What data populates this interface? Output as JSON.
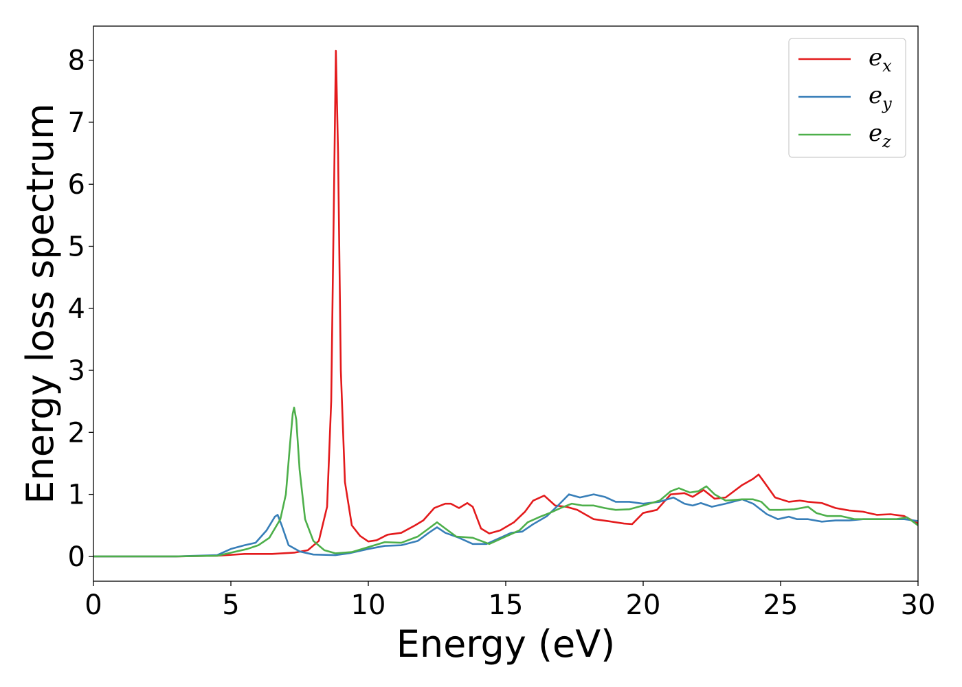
{
  "chart_data": {
    "type": "line",
    "xlabel": "Energy (eV)",
    "ylabel": "Energy loss spectrum",
    "xlim": [
      0,
      30
    ],
    "ylim": [
      -0.4,
      8.55
    ],
    "xticks": [
      "0",
      "5",
      "10",
      "15",
      "20",
      "25",
      "30"
    ],
    "yticks": [
      "0",
      "1",
      "2",
      "3",
      "4",
      "5",
      "6",
      "7",
      "8"
    ],
    "grid": false,
    "legend": {
      "placement": "top-right"
    },
    "series": [
      {
        "name": "e_x",
        "label_base": "e",
        "label_sub": "x",
        "color": "#e31a1c",
        "points": [
          [
            0,
            0
          ],
          [
            3,
            0
          ],
          [
            4.5,
            0.01
          ],
          [
            5.5,
            0.04
          ],
          [
            6.5,
            0.04
          ],
          [
            7.3,
            0.06
          ],
          [
            7.8,
            0.1
          ],
          [
            8.2,
            0.25
          ],
          [
            8.5,
            0.8
          ],
          [
            8.65,
            2.5
          ],
          [
            8.75,
            5.8
          ],
          [
            8.82,
            8.15
          ],
          [
            8.9,
            6.5
          ],
          [
            9.0,
            3.0
          ],
          [
            9.15,
            1.2
          ],
          [
            9.4,
            0.5
          ],
          [
            9.7,
            0.33
          ],
          [
            10.0,
            0.24
          ],
          [
            10.3,
            0.26
          ],
          [
            10.7,
            0.35
          ],
          [
            11.2,
            0.38
          ],
          [
            11.7,
            0.5
          ],
          [
            12.0,
            0.58
          ],
          [
            12.4,
            0.78
          ],
          [
            12.8,
            0.85
          ],
          [
            13.0,
            0.85
          ],
          [
            13.3,
            0.78
          ],
          [
            13.6,
            0.86
          ],
          [
            13.8,
            0.8
          ],
          [
            14.1,
            0.45
          ],
          [
            14.4,
            0.37
          ],
          [
            14.8,
            0.42
          ],
          [
            15.3,
            0.55
          ],
          [
            15.7,
            0.72
          ],
          [
            16.0,
            0.9
          ],
          [
            16.4,
            0.98
          ],
          [
            16.8,
            0.82
          ],
          [
            17.2,
            0.8
          ],
          [
            17.6,
            0.75
          ],
          [
            18.2,
            0.6
          ],
          [
            18.7,
            0.57
          ],
          [
            19.3,
            0.53
          ],
          [
            19.6,
            0.52
          ],
          [
            20.0,
            0.7
          ],
          [
            20.5,
            0.75
          ],
          [
            21.0,
            1.0
          ],
          [
            21.5,
            1.02
          ],
          [
            21.8,
            0.96
          ],
          [
            22.2,
            1.07
          ],
          [
            22.6,
            0.93
          ],
          [
            23.0,
            0.95
          ],
          [
            23.6,
            1.15
          ],
          [
            24.0,
            1.25
          ],
          [
            24.2,
            1.32
          ],
          [
            24.4,
            1.2
          ],
          [
            24.8,
            0.95
          ],
          [
            25.3,
            0.88
          ],
          [
            25.7,
            0.9
          ],
          [
            26.0,
            0.88
          ],
          [
            26.5,
            0.86
          ],
          [
            27.0,
            0.78
          ],
          [
            27.5,
            0.74
          ],
          [
            28.0,
            0.72
          ],
          [
            28.5,
            0.67
          ],
          [
            29.0,
            0.68
          ],
          [
            29.5,
            0.65
          ],
          [
            30.0,
            0.53
          ]
        ]
      },
      {
        "name": "e_y",
        "label_base": "e",
        "label_sub": "y",
        "color": "#377eb8",
        "points": [
          [
            0,
            0
          ],
          [
            3,
            0
          ],
          [
            4.5,
            0.02
          ],
          [
            5.0,
            0.12
          ],
          [
            5.5,
            0.18
          ],
          [
            5.9,
            0.22
          ],
          [
            6.3,
            0.42
          ],
          [
            6.6,
            0.64
          ],
          [
            6.7,
            0.67
          ],
          [
            6.85,
            0.5
          ],
          [
            7.1,
            0.18
          ],
          [
            7.5,
            0.08
          ],
          [
            8.0,
            0.03
          ],
          [
            8.8,
            0.02
          ],
          [
            9.3,
            0.05
          ],
          [
            10.0,
            0.12
          ],
          [
            10.6,
            0.17
          ],
          [
            11.2,
            0.18
          ],
          [
            11.8,
            0.25
          ],
          [
            12.2,
            0.38
          ],
          [
            12.5,
            0.47
          ],
          [
            12.8,
            0.38
          ],
          [
            13.3,
            0.3
          ],
          [
            13.8,
            0.2
          ],
          [
            14.3,
            0.2
          ],
          [
            14.8,
            0.3
          ],
          [
            15.2,
            0.38
          ],
          [
            15.6,
            0.4
          ],
          [
            16.0,
            0.52
          ],
          [
            16.5,
            0.65
          ],
          [
            16.9,
            0.82
          ],
          [
            17.3,
            1.0
          ],
          [
            17.7,
            0.95
          ],
          [
            18.2,
            1.0
          ],
          [
            18.6,
            0.96
          ],
          [
            19.0,
            0.88
          ],
          [
            19.5,
            0.88
          ],
          [
            20.0,
            0.85
          ],
          [
            20.6,
            0.88
          ],
          [
            21.1,
            0.95
          ],
          [
            21.5,
            0.85
          ],
          [
            21.8,
            0.82
          ],
          [
            22.1,
            0.86
          ],
          [
            22.5,
            0.8
          ],
          [
            23.0,
            0.85
          ],
          [
            23.6,
            0.92
          ],
          [
            24.0,
            0.85
          ],
          [
            24.5,
            0.68
          ],
          [
            24.9,
            0.6
          ],
          [
            25.3,
            0.64
          ],
          [
            25.6,
            0.6
          ],
          [
            26.0,
            0.6
          ],
          [
            26.5,
            0.56
          ],
          [
            27.0,
            0.58
          ],
          [
            27.5,
            0.58
          ],
          [
            28.0,
            0.6
          ],
          [
            28.5,
            0.6
          ],
          [
            29.0,
            0.6
          ],
          [
            29.5,
            0.6
          ],
          [
            30.0,
            0.57
          ]
        ]
      },
      {
        "name": "e_z",
        "label_base": "e",
        "label_sub": "z",
        "color": "#4daf4a",
        "points": [
          [
            0,
            0
          ],
          [
            3,
            0
          ],
          [
            4.5,
            0.01
          ],
          [
            5.0,
            0.06
          ],
          [
            5.6,
            0.12
          ],
          [
            6.0,
            0.18
          ],
          [
            6.4,
            0.3
          ],
          [
            6.8,
            0.6
          ],
          [
            7.0,
            1.0
          ],
          [
            7.15,
            1.8
          ],
          [
            7.25,
            2.3
          ],
          [
            7.3,
            2.4
          ],
          [
            7.38,
            2.2
          ],
          [
            7.5,
            1.4
          ],
          [
            7.7,
            0.6
          ],
          [
            8.0,
            0.25
          ],
          [
            8.4,
            0.1
          ],
          [
            8.8,
            0.05
          ],
          [
            9.4,
            0.07
          ],
          [
            10.0,
            0.15
          ],
          [
            10.6,
            0.23
          ],
          [
            11.2,
            0.22
          ],
          [
            11.8,
            0.32
          ],
          [
            12.2,
            0.45
          ],
          [
            12.5,
            0.55
          ],
          [
            12.8,
            0.45
          ],
          [
            13.2,
            0.32
          ],
          [
            13.8,
            0.3
          ],
          [
            14.4,
            0.2
          ],
          [
            14.9,
            0.3
          ],
          [
            15.5,
            0.42
          ],
          [
            15.8,
            0.55
          ],
          [
            16.2,
            0.63
          ],
          [
            16.6,
            0.7
          ],
          [
            17.0,
            0.78
          ],
          [
            17.4,
            0.85
          ],
          [
            17.8,
            0.82
          ],
          [
            18.2,
            0.82
          ],
          [
            18.6,
            0.78
          ],
          [
            19.0,
            0.75
          ],
          [
            19.5,
            0.76
          ],
          [
            20.0,
            0.82
          ],
          [
            20.6,
            0.9
          ],
          [
            21.0,
            1.05
          ],
          [
            21.3,
            1.1
          ],
          [
            21.7,
            1.03
          ],
          [
            22.0,
            1.05
          ],
          [
            22.3,
            1.13
          ],
          [
            22.6,
            1.0
          ],
          [
            23.0,
            0.9
          ],
          [
            23.6,
            0.92
          ],
          [
            24.0,
            0.92
          ],
          [
            24.3,
            0.88
          ],
          [
            24.6,
            0.75
          ],
          [
            25.0,
            0.75
          ],
          [
            25.5,
            0.76
          ],
          [
            26.0,
            0.8
          ],
          [
            26.3,
            0.7
          ],
          [
            26.7,
            0.65
          ],
          [
            27.2,
            0.65
          ],
          [
            27.7,
            0.6
          ],
          [
            28.2,
            0.6
          ],
          [
            28.7,
            0.6
          ],
          [
            29.2,
            0.6
          ],
          [
            29.6,
            0.63
          ],
          [
            30.0,
            0.5
          ]
        ]
      }
    ]
  }
}
